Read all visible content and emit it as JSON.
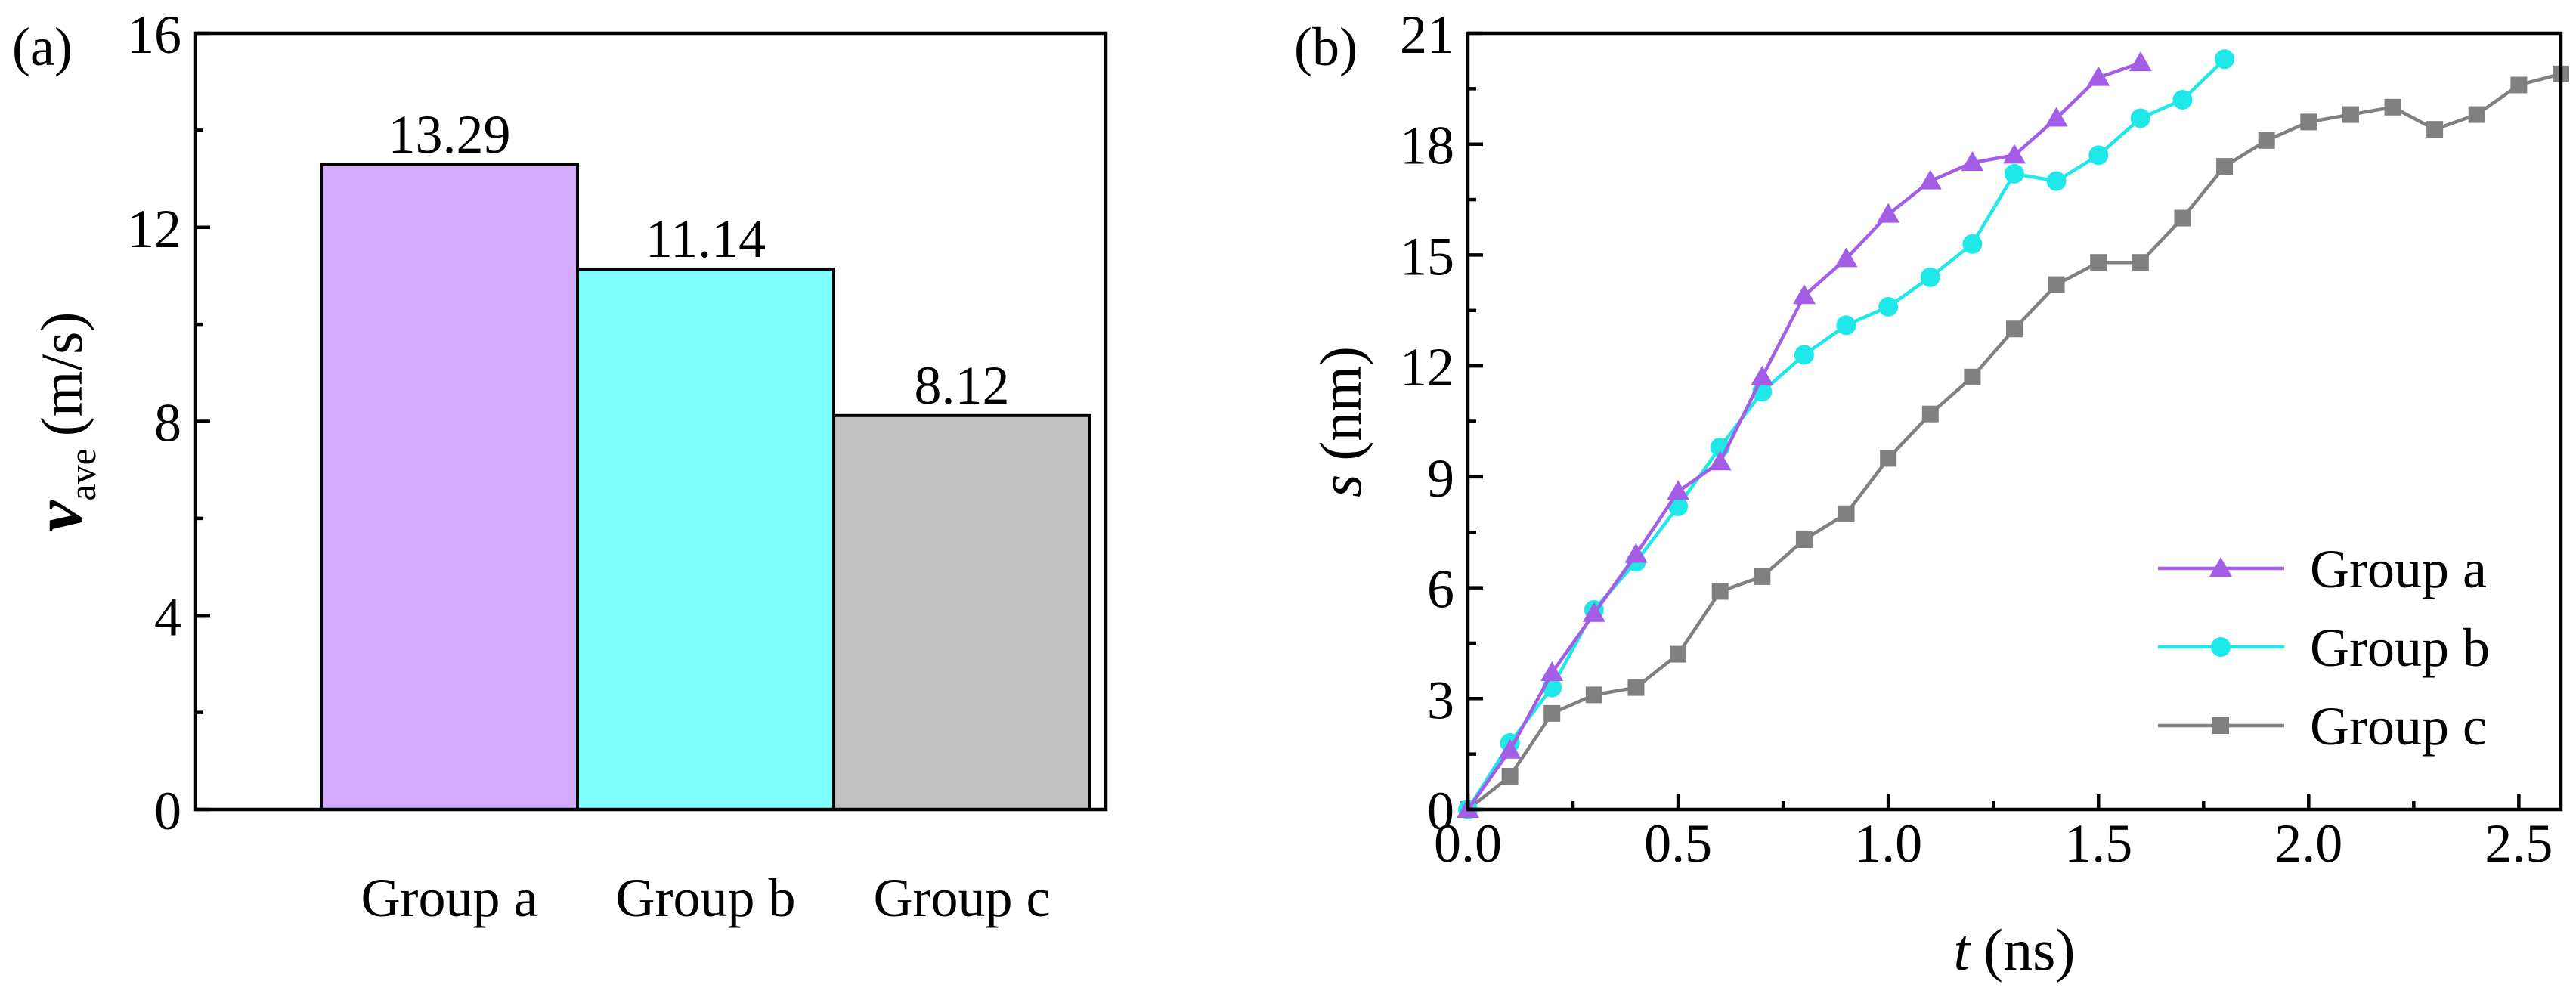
{
  "chart_data": [
    {
      "panel_label": "(a)",
      "type": "bar",
      "categories": [
        "Group a",
        "Group b",
        "Group c"
      ],
      "values": [
        13.29,
        11.14,
        8.12
      ],
      "value_labels": [
        "13.29",
        "11.14",
        "8.12"
      ],
      "colors": [
        "#D5ABFF",
        "#80FFFF",
        "#C0C0C0"
      ],
      "ylabel_symbol": "v",
      "ylabel_subscript": "ave",
      "ylabel_unit": "(m/s)",
      "ylim": [
        0,
        16
      ],
      "yticks": [
        0,
        4,
        8,
        12,
        16
      ],
      "ytick_labels": [
        "0",
        "4",
        "8",
        "12",
        "16"
      ]
    },
    {
      "panel_label": "(b)",
      "type": "line",
      "xlabel_symbol": "t",
      "xlabel_unit": "(ns)",
      "ylabel_symbol": "s",
      "ylabel_unit": "(nm)",
      "xlim": [
        0,
        2.6
      ],
      "ylim": [
        0,
        21
      ],
      "xticks": [
        0,
        0.5,
        1.0,
        1.5,
        2.0,
        2.5
      ],
      "xtick_labels": [
        "0.0",
        "0.5",
        "1.0",
        "1.5",
        "2.0",
        "2.5"
      ],
      "yticks": [
        0,
        3,
        6,
        9,
        12,
        15,
        18,
        21
      ],
      "ytick_labels": [
        "0",
        "3",
        "6",
        "9",
        "12",
        "15",
        "18",
        "21"
      ],
      "legend_position": "bottom-right",
      "series": [
        {
          "name": "Group a",
          "color": "#A45EE5",
          "marker": "triangle",
          "x": [
            0,
            0.1,
            0.2,
            0.3,
            0.4,
            0.5,
            0.6,
            0.7,
            0.8,
            0.9,
            1.0,
            1.1,
            1.2,
            1.3,
            1.4,
            1.5,
            1.6
          ],
          "y": [
            0,
            1.6,
            3.7,
            5.3,
            6.9,
            8.6,
            9.4,
            11.7,
            13.9,
            14.9,
            16.1,
            17.0,
            17.5,
            17.7,
            18.7,
            19.8,
            20.2
          ]
        },
        {
          "name": "Group b",
          "color": "#1EE8E8",
          "marker": "circle",
          "x": [
            0,
            0.1,
            0.2,
            0.3,
            0.4,
            0.5,
            0.6,
            0.7,
            0.8,
            0.9,
            1.0,
            1.1,
            1.2,
            1.3,
            1.4,
            1.5,
            1.6,
            1.7,
            1.8
          ],
          "y": [
            0,
            1.8,
            3.3,
            5.4,
            6.7,
            8.2,
            9.8,
            11.3,
            12.3,
            13.1,
            13.6,
            14.4,
            15.3,
            17.2,
            17.0,
            17.7,
            18.7,
            19.2,
            20.3
          ]
        },
        {
          "name": "Group c",
          "color": "#808080",
          "marker": "square",
          "x": [
            0,
            0.1,
            0.2,
            0.3,
            0.4,
            0.5,
            0.6,
            0.7,
            0.8,
            0.9,
            1.0,
            1.1,
            1.2,
            1.3,
            1.4,
            1.5,
            1.6,
            1.7,
            1.8,
            1.9,
            2.0,
            2.1,
            2.2,
            2.3,
            2.4,
            2.5,
            2.6
          ],
          "y": [
            0,
            0.9,
            2.6,
            3.1,
            3.3,
            4.2,
            5.9,
            6.3,
            7.3,
            8.0,
            9.5,
            10.7,
            11.7,
            13.0,
            14.2,
            14.8,
            14.8,
            16.0,
            17.4,
            18.1,
            18.6,
            18.8,
            19.0,
            18.4,
            18.8,
            19.6,
            19.9
          ]
        }
      ]
    }
  ]
}
